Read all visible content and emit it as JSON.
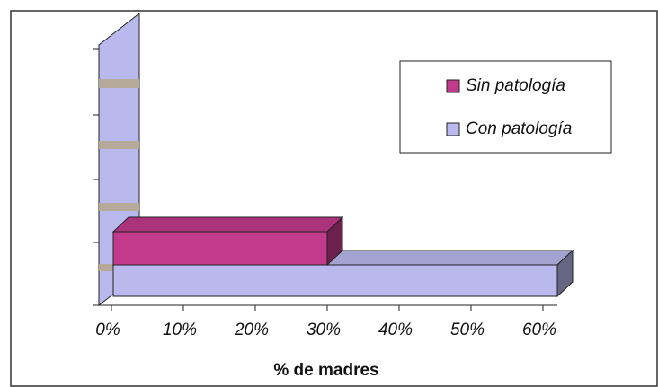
{
  "chart_data": {
    "type": "bar3d_horizontal",
    "series": [
      {
        "name": "Sin patología",
        "color": "#c23a8c",
        "values": [
          30
        ]
      },
      {
        "name": "Con patología",
        "color": "#b9b9ee",
        "values": [
          62
        ]
      }
    ],
    "xlim": [
      0,
      60
    ],
    "xticks": [
      {
        "value": 0,
        "label": "0%"
      },
      {
        "value": 10,
        "label": "10%"
      },
      {
        "value": 20,
        "label": "20%"
      },
      {
        "value": 30,
        "label": "30%"
      },
      {
        "value": 40,
        "label": "40%"
      },
      {
        "value": 50,
        "label": "50%"
      },
      {
        "value": 60,
        "label": "60%"
      }
    ],
    "xlabel": "% de madres",
    "legend": "upper right"
  }
}
